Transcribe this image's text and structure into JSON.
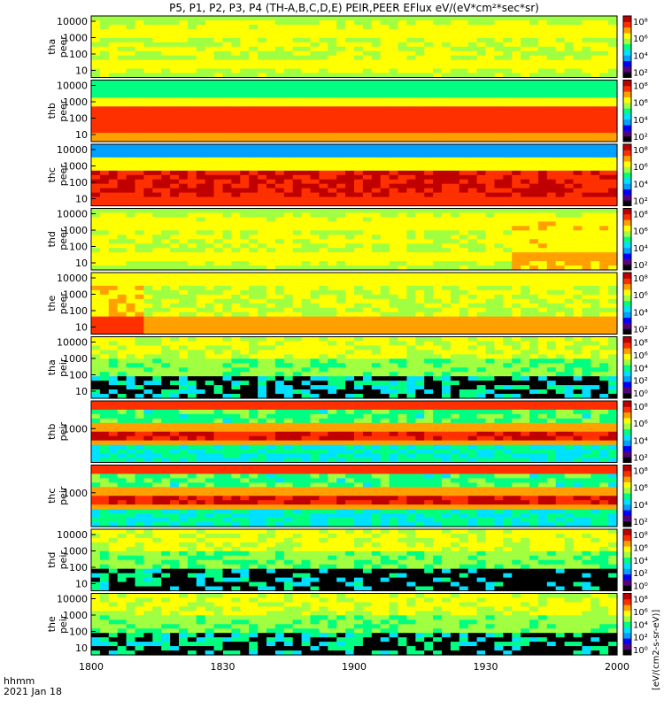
{
  "title": "P5, P1, P2, P3, P4 (TH-A,B,C,D,E) PEIR,PEER EFlux eV/(eV*cm²*sec*sr)",
  "colorbar_label": "[eV/(cm2-s-sr-eV)]",
  "time_label_line1": "hhmm",
  "time_label_line2": "2021 Jan 18",
  "colormap": [
    "#000000",
    "#5a007f",
    "#0000ff",
    "#00a0ff",
    "#00e0ff",
    "#00ff80",
    "#a0ff40",
    "#ffff00",
    "#ffa000",
    "#ff3000",
    "#c00000"
  ],
  "chart_data": {
    "type": "heatmap",
    "x": {
      "label": "",
      "ticks": [
        "1800",
        "1830",
        "1900",
        "1930",
        "2000"
      ],
      "range_minutes": [
        0,
        120
      ]
    },
    "panels": [
      {
        "name": "tha peer",
        "label1": "tha",
        "label2": "peer",
        "yticks": [
          "10",
          "100",
          "1000",
          "10000"
        ],
        "cbar_ticks": [
          "10²",
          "10⁴",
          "10⁶",
          "10⁸"
        ],
        "hue": "green-orange"
      },
      {
        "name": "thb peer",
        "label1": "thb",
        "label2": "peer",
        "yticks": [
          "10",
          "100",
          "1000",
          "10000"
        ],
        "cbar_ticks": [
          "10²",
          "10⁴",
          "10⁶",
          "10⁸"
        ],
        "hue": "red-cyan"
      },
      {
        "name": "thc peer",
        "label1": "thc",
        "label2": "peer",
        "yticks": [
          "10",
          "100",
          "1000",
          "10000"
        ],
        "cbar_ticks": [
          "10²",
          "10⁴",
          "10⁶",
          "10⁸"
        ],
        "hue": "red-blue"
      },
      {
        "name": "thd peer",
        "label1": "thd",
        "label2": "peer",
        "yticks": [
          "10",
          "100",
          "1000",
          "10000"
        ],
        "cbar_ticks": [
          "10²",
          "10⁴",
          "10⁶",
          "10⁸"
        ],
        "hue": "green-orange"
      },
      {
        "name": "the peer",
        "label1": "the",
        "label2": "peer",
        "yticks": [
          "10",
          "100",
          "1000",
          "10000"
        ],
        "cbar_ticks": [
          "10²",
          "10⁴",
          "10⁶",
          "10⁸"
        ],
        "hue": "yellow-red"
      },
      {
        "name": "tha peir",
        "label1": "tha",
        "label2": "peir",
        "yticks": [
          "10",
          "100",
          "1000",
          "10000"
        ],
        "cbar_ticks": [
          "10⁰",
          "10²",
          "10⁴",
          "10⁶",
          "10⁸"
        ],
        "hue": "ion-black"
      },
      {
        "name": "thb peir",
        "label1": "thb",
        "label2": "peir",
        "yticks": [
          "1000"
        ],
        "cbar_ticks": [
          "10²",
          "10⁴",
          "10⁶",
          "10⁸"
        ],
        "hue": "ion-band"
      },
      {
        "name": "thc peir",
        "label1": "thc",
        "label2": "peir",
        "yticks": [
          "1000"
        ],
        "cbar_ticks": [
          "10²",
          "10⁴",
          "10⁶",
          "10⁸"
        ],
        "hue": "ion-band"
      },
      {
        "name": "thd peir",
        "label1": "thd",
        "label2": "peir",
        "yticks": [
          "10",
          "100",
          "1000",
          "10000"
        ],
        "cbar_ticks": [
          "10⁰",
          "10²",
          "10⁴",
          "10⁶",
          "10⁸"
        ],
        "hue": "ion-black"
      },
      {
        "name": "the peir",
        "label1": "the",
        "label2": "peir",
        "yticks": [
          "10",
          "100",
          "1000",
          "10000"
        ],
        "cbar_ticks": [
          "10⁰",
          "10²",
          "10⁴",
          "10⁶",
          "10⁸"
        ],
        "hue": "ion-black"
      }
    ]
  }
}
